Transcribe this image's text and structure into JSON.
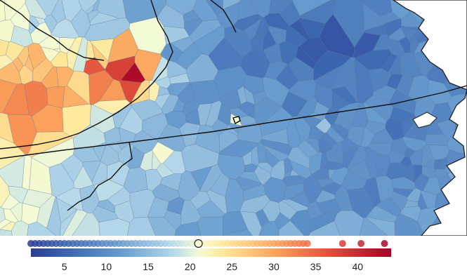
{
  "map": {
    "region": "southwest-virginia-northern-north-carolina",
    "colors": {
      "water": "#ffffff",
      "state_border": "#111111",
      "county_border": "#5a6f8f"
    },
    "palette_stops": [
      {
        "v": 1,
        "c": "#2c3c93"
      },
      {
        "v": 6,
        "c": "#3e6bb3"
      },
      {
        "v": 12,
        "c": "#6a9dcf"
      },
      {
        "v": 18,
        "c": "#b5d8ea"
      },
      {
        "v": 21,
        "c": "#f4fbd6"
      },
      {
        "v": 24,
        "c": "#fee89a"
      },
      {
        "v": 30,
        "c": "#fca55d"
      },
      {
        "v": 36,
        "c": "#e6583e"
      },
      {
        "v": 44,
        "c": "#a50026"
      }
    ],
    "highlight_marker": {
      "label": "highlighted-county",
      "value": 21
    }
  },
  "legend": {
    "min": 1,
    "max": 44,
    "ticks": [
      "5",
      "10",
      "15",
      "20",
      "25",
      "30",
      "35",
      "40"
    ],
    "tick_values": [
      5,
      10,
      15,
      20,
      25,
      30,
      35,
      40
    ],
    "selected_value": 21,
    "dot_values": [
      1,
      1.5,
      2,
      2.5,
      3,
      3.5,
      4,
      4.5,
      5,
      5.5,
      6,
      6.5,
      7,
      7.5,
      8,
      8.5,
      9,
      9.5,
      10,
      10.5,
      11,
      11.5,
      12,
      12.5,
      13,
      13.5,
      14,
      14.5,
      15,
      15.5,
      16,
      16.5,
      17,
      17.5,
      18,
      18.5,
      19,
      19.5,
      20,
      20.5,
      21,
      21.5,
      22,
      22.5,
      23,
      23.5,
      24,
      24.5,
      25,
      25.5,
      26,
      26.5,
      27,
      27.5,
      28,
      28.5,
      29,
      29.5,
      30,
      30.5,
      31,
      31.5,
      32,
      32.5,
      33,
      33.5,
      34,
      38.2,
      40.4,
      43.2
    ]
  }
}
